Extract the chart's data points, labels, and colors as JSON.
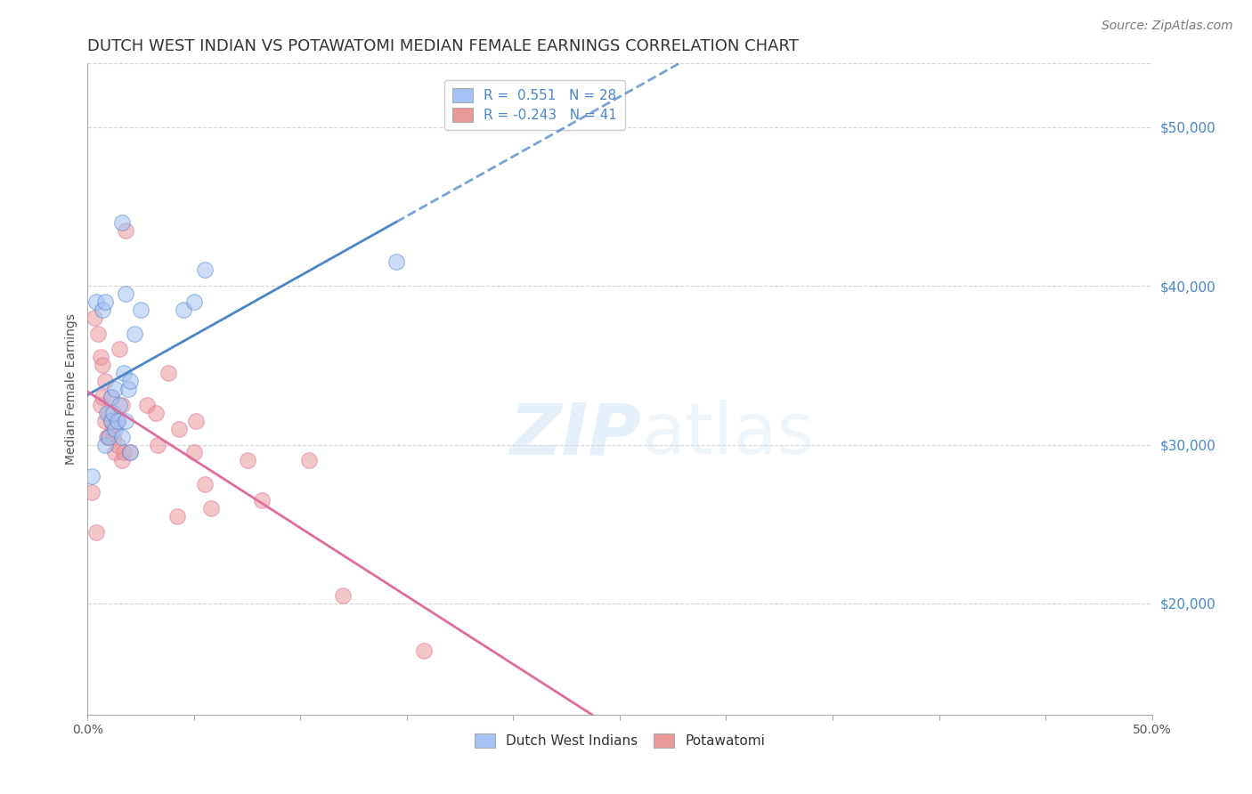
{
  "title": "DUTCH WEST INDIAN VS POTAWATOMI MEDIAN FEMALE EARNINGS CORRELATION CHART",
  "source": "Source: ZipAtlas.com",
  "ylabel": "Median Female Earnings",
  "right_ytick_labels": [
    "$20,000",
    "$30,000",
    "$40,000",
    "$50,000"
  ],
  "right_ytick_values": [
    20000,
    30000,
    40000,
    50000
  ],
  "xlim": [
    0.0,
    0.5
  ],
  "ylim": [
    13000,
    54000
  ],
  "legend_blue_R": "0.551",
  "legend_blue_N": "28",
  "legend_pink_R": "-0.243",
  "legend_pink_N": "41",
  "blue_color": "#a4c2f4",
  "blue_line_color": "#4a86c8",
  "pink_color": "#ea9999",
  "pink_line_color": "#e06c9f",
  "background_color": "#ffffff",
  "grid_color": "#cccccc",
  "blue_x": [
    0.002,
    0.004,
    0.007,
    0.008,
    0.008,
    0.009,
    0.01,
    0.011,
    0.011,
    0.012,
    0.013,
    0.013,
    0.014,
    0.015,
    0.016,
    0.016,
    0.017,
    0.018,
    0.018,
    0.019,
    0.02,
    0.02,
    0.022,
    0.025,
    0.045,
    0.05,
    0.055,
    0.145
  ],
  "blue_y": [
    28000,
    39000,
    38500,
    39000,
    30000,
    32000,
    30500,
    31500,
    33000,
    32000,
    31000,
    33500,
    31500,
    32500,
    44000,
    30500,
    34500,
    31500,
    39500,
    33500,
    34000,
    29500,
    37000,
    38500,
    38500,
    39000,
    41000,
    41500
  ],
  "pink_x": [
    0.002,
    0.003,
    0.004,
    0.005,
    0.006,
    0.006,
    0.007,
    0.007,
    0.008,
    0.008,
    0.009,
    0.01,
    0.01,
    0.011,
    0.011,
    0.012,
    0.012,
    0.013,
    0.014,
    0.014,
    0.015,
    0.016,
    0.016,
    0.017,
    0.018,
    0.02,
    0.028,
    0.032,
    0.033,
    0.038,
    0.042,
    0.043,
    0.05,
    0.051,
    0.055,
    0.058,
    0.075,
    0.082,
    0.104,
    0.12,
    0.158
  ],
  "pink_y": [
    27000,
    38000,
    24500,
    37000,
    32500,
    35500,
    33000,
    35000,
    34000,
    31500,
    30500,
    32000,
    30500,
    31500,
    33000,
    30500,
    31000,
    29500,
    30000,
    31500,
    36000,
    29000,
    32500,
    29500,
    43500,
    29500,
    32500,
    32000,
    30000,
    34500,
    25500,
    31000,
    29500,
    31500,
    27500,
    26000,
    29000,
    26500,
    29000,
    20500,
    17000
  ],
  "title_fontsize": 13,
  "source_fontsize": 10,
  "axis_fontsize": 10,
  "legend_fontsize": 11,
  "marker_size": 160,
  "marker_alpha": 0.55,
  "line_width": 2.0,
  "watermark_color": "#ddeeff"
}
